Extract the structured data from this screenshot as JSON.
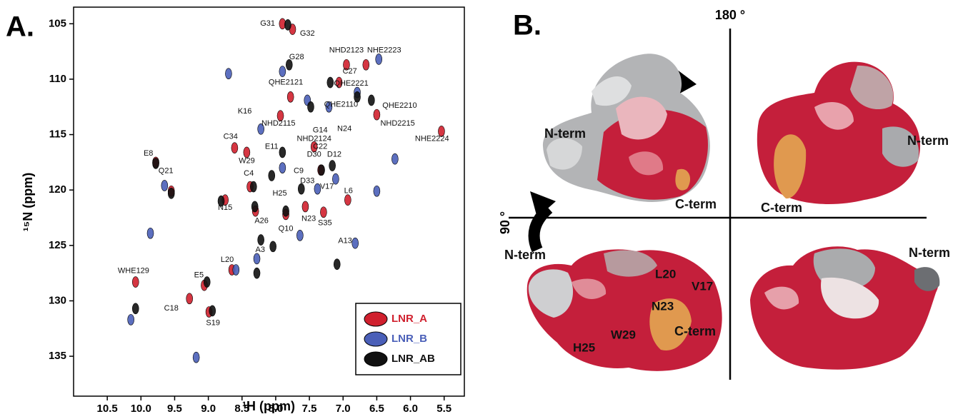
{
  "chart_data": {
    "type": "scatter",
    "panel_label": "A.",
    "x_label": "¹H (ppm)",
    "y_label": "¹⁵N (ppm)",
    "xlim": [
      11.0,
      5.2
    ],
    "ylim": [
      138.6,
      103.5
    ],
    "xticks": [
      10.5,
      {
        "value": 10,
        "label": "10.0"
      },
      9.5,
      {
        "value": 9,
        "label": "9.0"
      },
      8.5,
      {
        "value": 8,
        "label": "8.0"
      },
      7.5,
      {
        "value": 7,
        "label": "7.0"
      },
      6.5,
      {
        "value": 6,
        "label": "6.0"
      },
      5.5
    ],
    "yticks": [
      105,
      110,
      115,
      120,
      125,
      130,
      135
    ],
    "legend": "lower right",
    "series": [
      {
        "name": "LNR_A",
        "color": "#d0202e",
        "x": [
          7.9,
          7.75,
          9.78,
          9.55,
          8.61,
          8.43,
          8.75,
          8.38,
          8.3,
          8.65,
          9.06,
          9.28,
          8.99,
          10.08,
          6.93,
          7.29,
          7.56,
          5.54,
          6.66,
          6.95,
          7.06,
          7.85,
          7.78,
          7.93,
          7.43,
          7.33,
          6.5
        ],
        "y": [
          105.0,
          105.5,
          117.5,
          120.1,
          116.2,
          116.6,
          120.9,
          119.7,
          121.9,
          127.2,
          128.6,
          129.8,
          131.0,
          128.3,
          120.9,
          122.0,
          121.5,
          114.7,
          108.7,
          108.7,
          110.3,
          122.2,
          111.6,
          113.3,
          116.1,
          118.2,
          113.2
        ]
      },
      {
        "name": "LNR_B",
        "color": "#4a5fb8",
        "x": [
          8.7,
          9.65,
          9.86,
          10.15,
          9.18,
          8.59,
          8.28,
          7.64,
          6.82,
          6.23,
          6.5,
          6.47,
          7.53,
          7.21,
          6.79,
          8.22,
          7.9,
          7.38,
          7.11,
          7.9
        ],
        "y": [
          109.5,
          119.6,
          123.9,
          131.7,
          135.1,
          127.2,
          126.2,
          124.1,
          124.8,
          117.2,
          120.1,
          108.2,
          111.9,
          112.5,
          111.2,
          114.5,
          118.0,
          119.9,
          119.0,
          109.3
        ]
      },
      {
        "name": "LNR_AB",
        "color": "#111111",
        "x": [
          9.78,
          9.55,
          10.08,
          7.82,
          7.8,
          7.48,
          7.19,
          6.79,
          6.58,
          8.33,
          8.31,
          8.22,
          8.28,
          8.04,
          7.85,
          7.32,
          7.16,
          7.09,
          8.94,
          9.02,
          7.62,
          7.9,
          8.81,
          8.06
        ],
        "y": [
          117.6,
          120.3,
          130.7,
          105.1,
          108.7,
          112.5,
          110.3,
          111.6,
          111.9,
          119.7,
          121.5,
          124.5,
          127.5,
          125.1,
          121.9,
          118.2,
          117.8,
          126.7,
          130.9,
          128.3,
          119.9,
          116.6,
          121.0,
          118.7
        ]
      }
    ],
    "annotations": [
      {
        "text": "G31",
        "x": 8.12,
        "y": 105.0
      },
      {
        "text": "G32",
        "x": 7.53,
        "y": 105.9
      },
      {
        "text": "G28",
        "x": 7.69,
        "y": 108.0
      },
      {
        "text": "NHD2123",
        "x": 6.95,
        "y": 107.4
      },
      {
        "text": "NHE2223",
        "x": 6.39,
        "y": 107.4
      },
      {
        "text": "C27",
        "x": 6.9,
        "y": 109.3
      },
      {
        "text": "QHE2121",
        "x": 7.85,
        "y": 110.3
      },
      {
        "text": "QHE2221",
        "x": 6.88,
        "y": 110.4
      },
      {
        "text": "QHE2110",
        "x": 7.03,
        "y": 112.3
      },
      {
        "text": "QHE2210",
        "x": 6.16,
        "y": 112.4
      },
      {
        "text": "K16",
        "x": 8.46,
        "y": 112.9
      },
      {
        "text": "NHD2115",
        "x": 7.96,
        "y": 114.0
      },
      {
        "text": "G14",
        "x": 7.34,
        "y": 114.6
      },
      {
        "text": "N24",
        "x": 6.98,
        "y": 114.5
      },
      {
        "text": "NHD2215",
        "x": 6.19,
        "y": 114.0
      },
      {
        "text": "NHD2124",
        "x": 7.43,
        "y": 115.4
      },
      {
        "text": "NHE2224",
        "x": 5.68,
        "y": 115.4
      },
      {
        "text": "C34",
        "x": 8.67,
        "y": 115.2
      },
      {
        "text": "C22",
        "x": 7.34,
        "y": 116.1
      },
      {
        "text": "E11",
        "x": 8.06,
        "y": 116.1
      },
      {
        "text": "D30",
        "x": 7.43,
        "y": 116.8
      },
      {
        "text": "D12",
        "x": 7.13,
        "y": 116.8
      },
      {
        "text": "W29",
        "x": 8.43,
        "y": 117.4
      },
      {
        "text": "E8",
        "x": 9.89,
        "y": 116.7
      },
      {
        "text": "C9",
        "x": 7.66,
        "y": 118.3
      },
      {
        "text": "Q21",
        "x": 9.63,
        "y": 118.3
      },
      {
        "text": "C4",
        "x": 8.4,
        "y": 118.5
      },
      {
        "text": "D33",
        "x": 7.53,
        "y": 119.2
      },
      {
        "text": "V17",
        "x": 7.24,
        "y": 119.7
      },
      {
        "text": "H25",
        "x": 7.94,
        "y": 120.3
      },
      {
        "text": "L6",
        "x": 6.92,
        "y": 120.1
      },
      {
        "text": "N15",
        "x": 8.75,
        "y": 121.6
      },
      {
        "text": "A26",
        "x": 8.21,
        "y": 122.8
      },
      {
        "text": "N23",
        "x": 7.51,
        "y": 122.6
      },
      {
        "text": "S35",
        "x": 7.27,
        "y": 123.0
      },
      {
        "text": "Q10",
        "x": 7.85,
        "y": 123.5
      },
      {
        "text": "A13",
        "x": 6.97,
        "y": 124.6
      },
      {
        "text": "A3",
        "x": 8.23,
        "y": 125.4
      },
      {
        "text": "L20",
        "x": 8.72,
        "y": 126.3
      },
      {
        "text": "WHE129",
        "x": 10.11,
        "y": 127.3
      },
      {
        "text": "E5",
        "x": 9.14,
        "y": 127.7
      },
      {
        "text": "C18",
        "x": 9.55,
        "y": 130.7
      },
      {
        "text": "S19",
        "x": 8.93,
        "y": 132.0
      }
    ]
  },
  "panel_b": {
    "panel_label": "B.",
    "rotation_top": "180 °",
    "rotation_left": "90 °",
    "top_left": [
      "N-term",
      "C-term"
    ],
    "top_right": [
      "N-term",
      "C-term"
    ],
    "bottom_left": [
      "N-term",
      "L20",
      "V17",
      "N23",
      "C-term",
      "W29",
      "H25"
    ],
    "bottom_right": [
      "N-term"
    ]
  }
}
